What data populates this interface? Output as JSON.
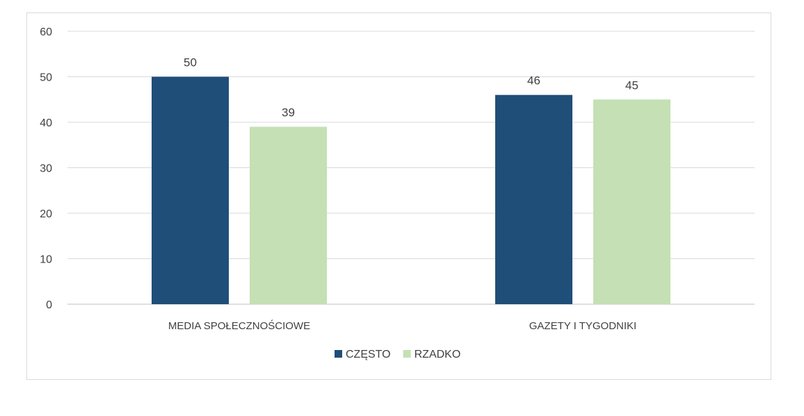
{
  "chart_data": {
    "type": "bar",
    "categories": [
      "MEDIA SPOŁECZNOŚCIOWE",
      "GAZETY I TYGODNIKI"
    ],
    "series": [
      {
        "name": "CZĘSTO",
        "values": [
          50,
          46
        ],
        "color": "#1f4e79"
      },
      {
        "name": "RZADKO",
        "values": [
          39,
          45
        ],
        "color": "#c5e0b4"
      }
    ],
    "ylim": [
      0,
      60
    ],
    "yticks": [
      0,
      10,
      20,
      30,
      40,
      50,
      60
    ],
    "grid": true,
    "legend": "bottom",
    "data_labels": true
  }
}
